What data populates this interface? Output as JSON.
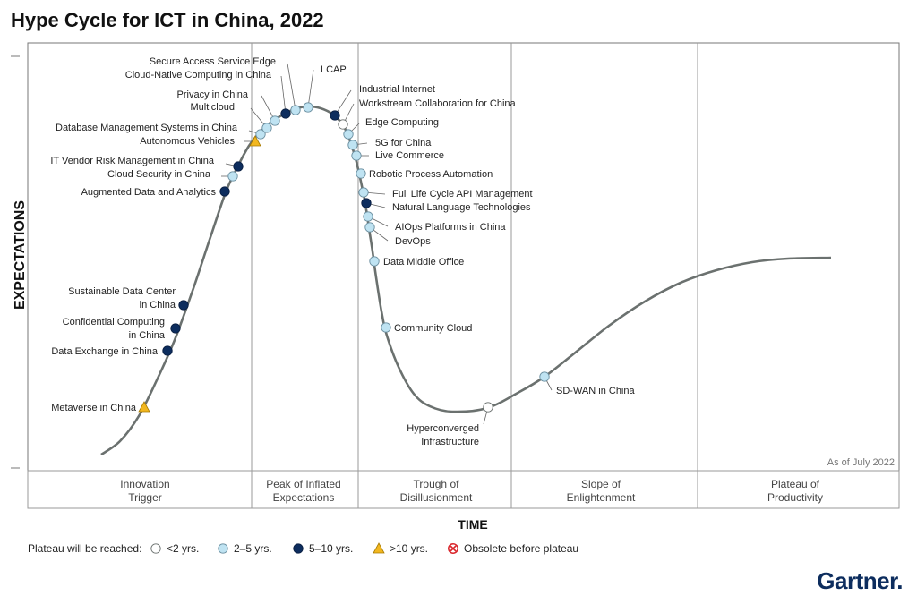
{
  "title": "Hype Cycle for ICT in China, 2022",
  "brand": "Gartner.",
  "colors": {
    "curve": "#6b716f",
    "lt2": "#ffffff",
    "y2to5": "#bfe3f2",
    "y5to10": "#0d2d5e",
    "gt10": "#f2b71f",
    "obsolete": "#d9242a"
  },
  "chart_data": {
    "type": "hype-cycle",
    "xlabel": "TIME",
    "ylabel": "EXPECTATIONS",
    "as_of": "As of July 2022",
    "phases": [
      {
        "line1": "Innovation",
        "line2": "Trigger"
      },
      {
        "line1": "Peak of Inflated",
        "line2": "Expectations"
      },
      {
        "line1": "Trough of",
        "line2": "Disillusionment"
      },
      {
        "line1": "Slope of",
        "line2": "Enlightenment"
      },
      {
        "line1": "Plateau of",
        "line2": "Productivity"
      }
    ],
    "legend": {
      "label": "Plateau will be reached:",
      "items": [
        {
          "key": "lt2",
          "label": "<2 yrs."
        },
        {
          "key": "y2to5",
          "label": "2–5 yrs."
        },
        {
          "key": "y5to10",
          "label": "5–10 yrs."
        },
        {
          "key": "gt10",
          "label": ">10 yrs."
        },
        {
          "key": "obsolete",
          "label": "Obsolete before plateau"
        }
      ]
    },
    "technologies": [
      {
        "name": "Metaverse in China",
        "cat": "gt10"
      },
      {
        "name": "Data Exchange in China",
        "cat": "y5to10"
      },
      {
        "name": "Confidential Computing in China",
        "cat": "y5to10"
      },
      {
        "name": "Sustainable Data Center in China",
        "cat": "y5to10"
      },
      {
        "name": "Augmented Data and Analytics",
        "cat": "y5to10"
      },
      {
        "name": "Cloud Security in China",
        "cat": "y2to5"
      },
      {
        "name": "IT Vendor Risk Management in China",
        "cat": "y5to10"
      },
      {
        "name": "Autonomous Vehicles",
        "cat": "gt10"
      },
      {
        "name": "Database Management Systems in China",
        "cat": "y2to5"
      },
      {
        "name": "Multicloud",
        "cat": "y2to5"
      },
      {
        "name": "Privacy in China",
        "cat": "y2to5"
      },
      {
        "name": "Cloud-Native Computing in China",
        "cat": "y5to10"
      },
      {
        "name": "Secure Access Service Edge",
        "cat": "y2to5"
      },
      {
        "name": "LCAP",
        "cat": "y2to5"
      },
      {
        "name": "Industrial Internet",
        "cat": "y5to10"
      },
      {
        "name": "Workstream Collaboration for China",
        "cat": "lt2"
      },
      {
        "name": "Edge Computing",
        "cat": "y2to5"
      },
      {
        "name": "5G for China",
        "cat": "y2to5"
      },
      {
        "name": "Live Commerce",
        "cat": "y2to5"
      },
      {
        "name": "Robotic Process Automation",
        "cat": "y2to5"
      },
      {
        "name": "Full Life Cycle API Management",
        "cat": "y2to5"
      },
      {
        "name": "Natural Language Technologies",
        "cat": "y5to10"
      },
      {
        "name": "AIOps Platforms in China",
        "cat": "y2to5"
      },
      {
        "name": "DevOps",
        "cat": "y2to5"
      },
      {
        "name": "Data Middle Office",
        "cat": "y2to5"
      },
      {
        "name": "Community Cloud",
        "cat": "y2to5"
      },
      {
        "name": "Hyperconverged Infrastructure",
        "cat": "lt2"
      },
      {
        "name": "SD-WAN in China",
        "cat": "y2to5"
      }
    ]
  }
}
